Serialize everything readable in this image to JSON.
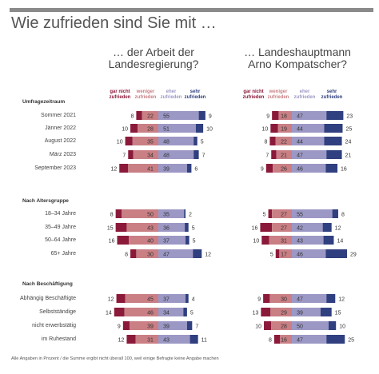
{
  "title": "Wie zufrieden sind Sie mit …",
  "subtitles": {
    "left": [
      "… der Arbeit der",
      "Landesregierung?"
    ],
    "right": [
      "… Landeshauptmann",
      "Arno Kompatscher?"
    ]
  },
  "col_headers": {
    "gar": [
      "gar nicht",
      "zufrieden"
    ],
    "wenig": [
      "weniger",
      "zufrieden"
    ],
    "eher": [
      "eher",
      "zufrieden"
    ],
    "sehr": [
      "sehr",
      "zufrieden"
    ]
  },
  "colors": {
    "gar": "#8b1a3a",
    "wenig": "#c97f84",
    "eher": "#9c98c5",
    "sehr": "#2f3f7f",
    "label": "#333333"
  },
  "note": "Alle Angaben in Prozent / die Summe ergibt nicht überall 100, weil einige Befragte keine Angabe machen",
  "chart_data": {
    "type": "bar",
    "stacked": "diverging",
    "unit": "%",
    "series_names": [
      "gar nicht zufrieden",
      "weniger zufrieden",
      "eher zufrieden",
      "sehr zufrieden"
    ],
    "groups": [
      {
        "title": "Umfragezeitraum",
        "rows": [
          {
            "label": "Sommer 2021",
            "left": [
              8,
              22,
              55,
              9
            ],
            "right": [
              9,
              18,
              47,
              23
            ]
          },
          {
            "label": "Jänner 2022",
            "left": [
              10,
              28,
              51,
              10
            ],
            "right": [
              10,
              19,
              44,
              25
            ]
          },
          {
            "label": "August 2022",
            "left": [
              10,
              35,
              48,
              5
            ],
            "right": [
              8,
              22,
              44,
              24
            ]
          },
          {
            "label": "März 2023",
            "left": [
              7,
              34,
              48,
              7
            ],
            "right": [
              7,
              21,
              47,
              21
            ]
          },
          {
            "label": "September 2023",
            "left": [
              12,
              41,
              39,
              6
            ],
            "right": [
              9,
              26,
              46,
              16
            ]
          }
        ]
      },
      {
        "title": "Nach Altersgruppe",
        "rows": [
          {
            "label": "18–34 Jahre",
            "left": [
              8,
              50,
              35,
              2
            ],
            "right": [
              5,
              27,
              55,
              8
            ]
          },
          {
            "label": "35–49 Jahre",
            "left": [
              15,
              43,
              36,
              5
            ],
            "right": [
              16,
              27,
              42,
              12
            ]
          },
          {
            "label": "50–64 Jahre",
            "left": [
              16,
              40,
              37,
              5
            ],
            "right": [
              10,
              31,
              43,
              14
            ]
          },
          {
            "label": "65+ Jahre",
            "left": [
              8,
              30,
              47,
              12
            ],
            "right": [
              5,
              17,
              46,
              29
            ]
          }
        ]
      },
      {
        "title": "Nach Beschäftigung",
        "rows": [
          {
            "label": "Abhängig Beschäftigte",
            "left": [
              12,
              45,
              37,
              4
            ],
            "right": [
              9,
              30,
              47,
              12
            ]
          },
          {
            "label": "Selbstständige",
            "left": [
              14,
              46,
              34,
              5
            ],
            "right": [
              13,
              29,
              39,
              15
            ]
          },
          {
            "label": "nicht erwerbstätig",
            "left": [
              9,
              39,
              39,
              7
            ],
            "right": [
              10,
              28,
              50,
              10
            ]
          },
          {
            "label": "im Ruhestand",
            "left": [
              12,
              31,
              43,
              11
            ],
            "right": [
              8,
              16,
              47,
              25
            ]
          }
        ]
      }
    ]
  }
}
